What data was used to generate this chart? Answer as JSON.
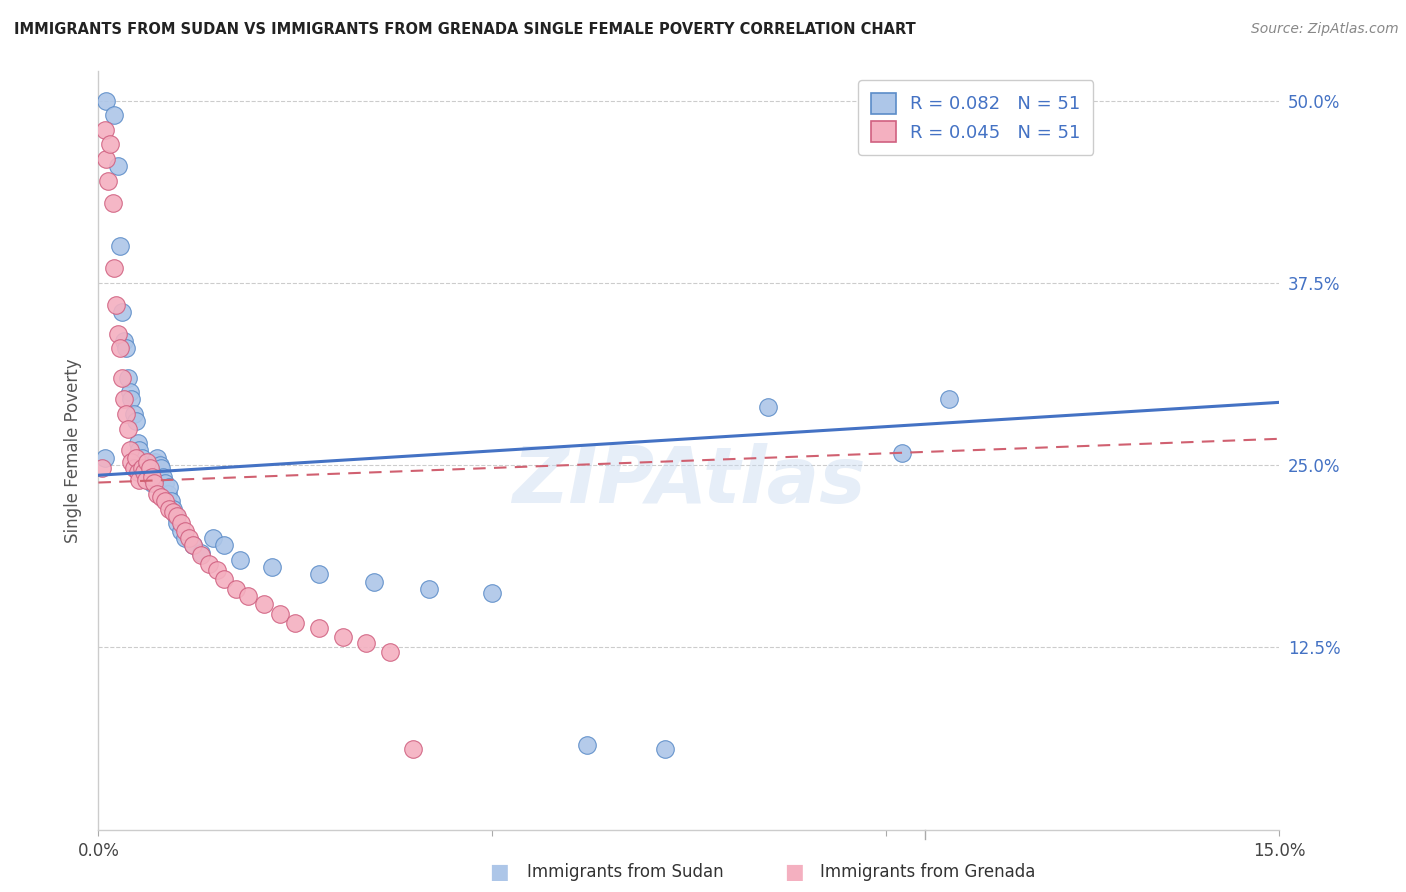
{
  "title": "IMMIGRANTS FROM SUDAN VS IMMIGRANTS FROM GRENADA SINGLE FEMALE POVERTY CORRELATION CHART",
  "source": "Source: ZipAtlas.com",
  "ylabel": "Single Female Poverty",
  "xlim": [
    0.0,
    0.15
  ],
  "ylim": [
    0.0,
    0.52
  ],
  "sudan_color": "#adc6e8",
  "sudan_edge_color": "#5b8cc8",
  "grenada_color": "#f4b0c0",
  "grenada_edge_color": "#d06080",
  "sudan_line_color": "#4472c4",
  "grenada_line_color": "#d06070",
  "legend_sudan_label": "R = 0.082   N = 51",
  "legend_grenada_label": "R = 0.045   N = 51",
  "footer_sudan": "Immigrants from Sudan",
  "footer_grenada": "Immigrants from Grenada",
  "watermark": "ZIPAtlas",
  "sudan_x": [
    0.0008,
    0.001,
    0.002,
    0.0025,
    0.0028,
    0.003,
    0.0032,
    0.0035,
    0.0038,
    0.004,
    0.0042,
    0.0045,
    0.0048,
    0.005,
    0.0052,
    0.0055,
    0.0058,
    0.006,
    0.0062,
    0.0065,
    0.0068,
    0.007,
    0.0072,
    0.0075,
    0.0078,
    0.008,
    0.0082,
    0.0085,
    0.0088,
    0.009,
    0.0092,
    0.0095,
    0.0098,
    0.01,
    0.0105,
    0.011,
    0.012,
    0.013,
    0.0145,
    0.016,
    0.018,
    0.022,
    0.028,
    0.035,
    0.042,
    0.05,
    0.062,
    0.072,
    0.085,
    0.102,
    0.108
  ],
  "sudan_y": [
    0.255,
    0.5,
    0.49,
    0.455,
    0.4,
    0.355,
    0.335,
    0.33,
    0.31,
    0.3,
    0.295,
    0.285,
    0.28,
    0.265,
    0.26,
    0.255,
    0.25,
    0.248,
    0.245,
    0.242,
    0.238,
    0.248,
    0.252,
    0.255,
    0.25,
    0.248,
    0.242,
    0.238,
    0.23,
    0.235,
    0.225,
    0.22,
    0.215,
    0.21,
    0.205,
    0.2,
    0.195,
    0.19,
    0.2,
    0.195,
    0.185,
    0.18,
    0.175,
    0.17,
    0.165,
    0.162,
    0.058,
    0.055,
    0.29,
    0.258,
    0.295
  ],
  "grenada_x": [
    0.0005,
    0.0008,
    0.001,
    0.0012,
    0.0015,
    0.0018,
    0.002,
    0.0022,
    0.0025,
    0.0028,
    0.003,
    0.0032,
    0.0035,
    0.0038,
    0.004,
    0.0042,
    0.0045,
    0.0048,
    0.005,
    0.0052,
    0.0055,
    0.0058,
    0.006,
    0.0062,
    0.0065,
    0.0068,
    0.007,
    0.0075,
    0.008,
    0.0085,
    0.009,
    0.0095,
    0.01,
    0.0105,
    0.011,
    0.0115,
    0.012,
    0.013,
    0.014,
    0.015,
    0.016,
    0.0175,
    0.019,
    0.021,
    0.023,
    0.025,
    0.028,
    0.031,
    0.034,
    0.037,
    0.04
  ],
  "grenada_y": [
    0.248,
    0.48,
    0.46,
    0.445,
    0.47,
    0.43,
    0.385,
    0.36,
    0.34,
    0.33,
    0.31,
    0.295,
    0.285,
    0.275,
    0.26,
    0.252,
    0.248,
    0.255,
    0.245,
    0.24,
    0.248,
    0.245,
    0.24,
    0.252,
    0.248,
    0.242,
    0.238,
    0.23,
    0.228,
    0.225,
    0.22,
    0.218,
    0.215,
    0.21,
    0.205,
    0.2,
    0.195,
    0.188,
    0.182,
    0.178,
    0.172,
    0.165,
    0.16,
    0.155,
    0.148,
    0.142,
    0.138,
    0.132,
    0.128,
    0.122,
    0.055
  ]
}
